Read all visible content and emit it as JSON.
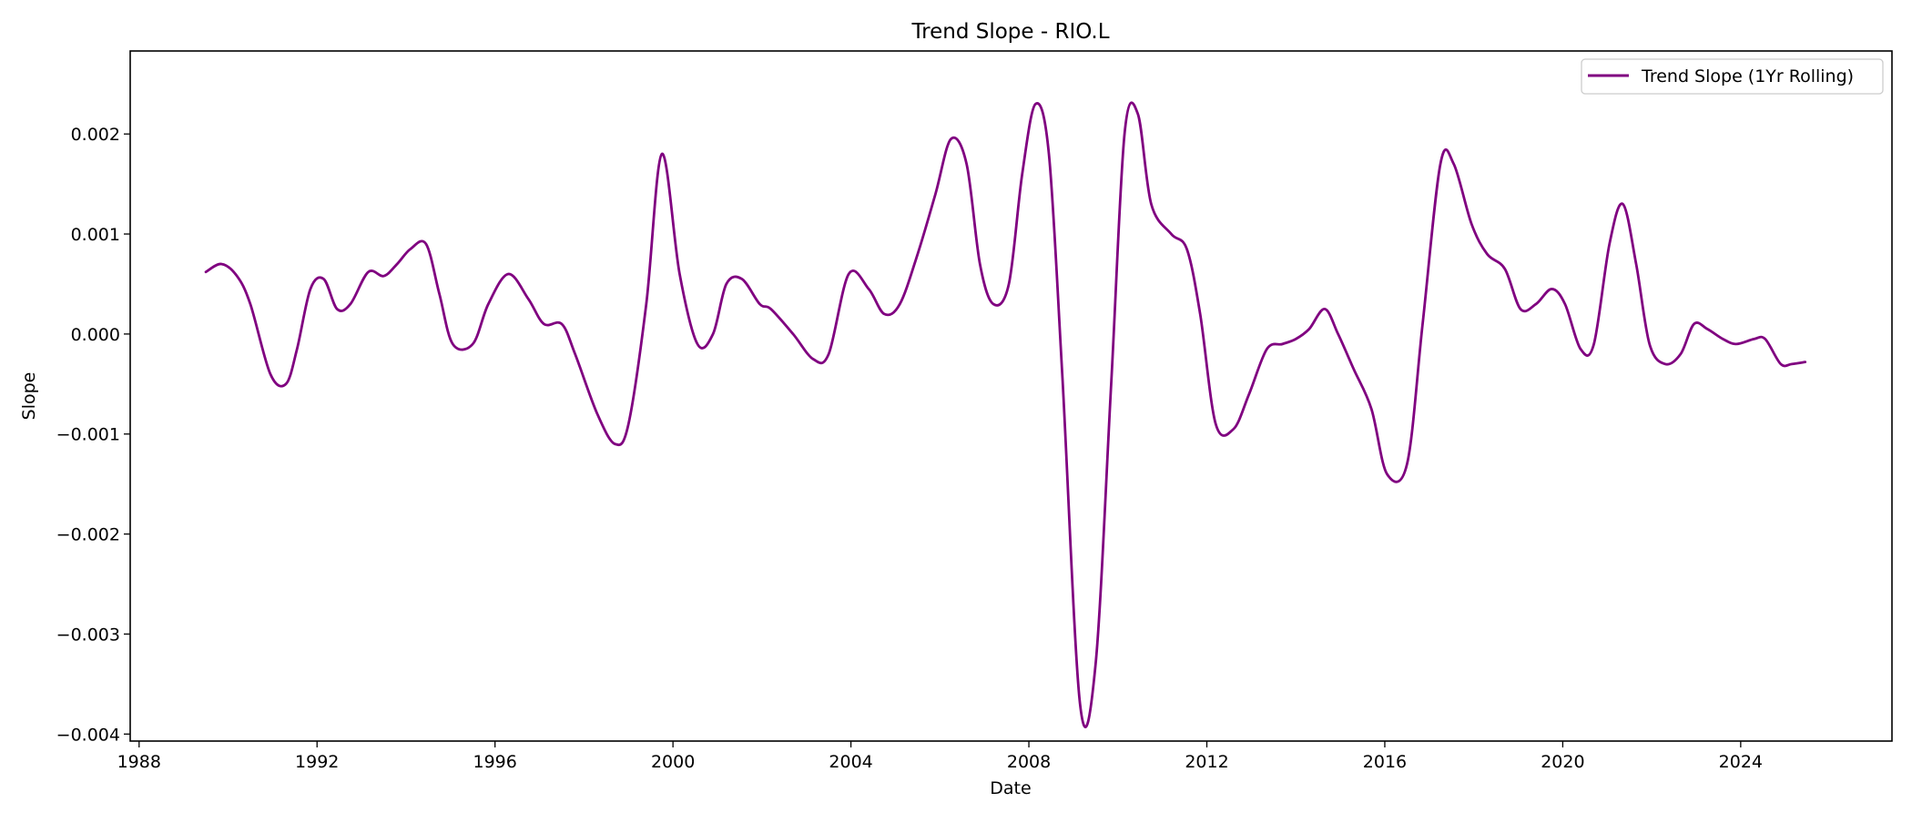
{
  "chart_data": {
    "type": "line",
    "title": "Trend Slope - RIO.L",
    "xlabel": "Date",
    "ylabel": "Slope",
    "x_range": [
      1987.8,
      2027.4
    ],
    "ylim": [
      -0.00407,
      0.00283
    ],
    "x_ticks": [
      1988,
      1992,
      1996,
      2000,
      2004,
      2008,
      2012,
      2016,
      2020,
      2024
    ],
    "x_tick_labels": [
      "1988",
      "1992",
      "1996",
      "2000",
      "2004",
      "2008",
      "2012",
      "2016",
      "2020",
      "2024"
    ],
    "y_ticks": [
      -0.004,
      -0.003,
      -0.002,
      -0.001,
      0.0,
      0.001,
      0.002
    ],
    "y_tick_labels": [
      "−0.004",
      "−0.003",
      "−0.002",
      "−0.001",
      "0.000",
      "0.001",
      "0.002"
    ],
    "grid": false,
    "legend_position": "top-right",
    "series": [
      {
        "name": "Trend Slope (1Yr Rolling)",
        "color": "#800080",
        "x": [
          1989.5,
          1989.85,
          1990.2,
          1990.5,
          1990.95,
          1991.3,
          1991.55,
          1991.85,
          1992.15,
          1992.45,
          1992.75,
          1993.15,
          1993.5,
          1993.8,
          1994.1,
          1994.45,
          1994.75,
          1995.05,
          1995.5,
          1995.85,
          1996.3,
          1996.75,
          1997.1,
          1997.5,
          1997.8,
          1998.3,
          1998.7,
          1999.0,
          1999.4,
          1999.75,
          2000.15,
          2000.55,
          2000.9,
          2001.2,
          2001.55,
          2001.95,
          2002.2,
          2002.7,
          2003.15,
          2003.5,
          2003.95,
          2004.4,
          2004.75,
          2005.1,
          2005.5,
          2005.9,
          2006.25,
          2006.6,
          2006.9,
          2007.2,
          2007.55,
          2007.85,
          2008.15,
          2008.45,
          2008.75,
          2009.15,
          2009.5,
          2009.85,
          2010.15,
          2010.45,
          2010.75,
          2011.2,
          2011.55,
          2011.85,
          2012.2,
          2012.6,
          2012.95,
          2013.35,
          2013.7,
          2014.0,
          2014.3,
          2014.65,
          2014.95,
          2015.3,
          2015.7,
          2016.05,
          2016.5,
          2016.85,
          2017.25,
          2017.55,
          2017.95,
          2018.3,
          2018.7,
          2019.05,
          2019.4,
          2019.75,
          2020.05,
          2020.4,
          2020.7,
          2021.05,
          2021.35,
          2021.65,
          2021.95,
          2022.3,
          2022.65,
          2022.95,
          2023.25,
          2023.6,
          2023.9,
          2024.3,
          2024.55,
          2024.9,
          2025.15,
          2025.45
        ],
        "y": [
          0.00062,
          0.0007,
          0.00058,
          0.0003,
          -0.0004,
          -0.0005,
          -0.00015,
          0.00045,
          0.00055,
          0.00025,
          0.0003,
          0.00062,
          0.00058,
          0.0007,
          0.00085,
          0.0009,
          0.0004,
          -0.0001,
          -0.0001,
          0.0003,
          0.0006,
          0.00035,
          0.0001,
          0.0001,
          -0.0002,
          -0.0008,
          -0.0011,
          -0.0009,
          0.0003,
          0.0018,
          0.0006,
          -0.0001,
          0.0,
          0.0005,
          0.00055,
          0.0003,
          0.00025,
          0.0,
          -0.00025,
          -0.0002,
          0.0006,
          0.00045,
          0.0002,
          0.0003,
          0.0008,
          0.0014,
          0.00195,
          0.0017,
          0.0007,
          0.0003,
          0.0005,
          0.0016,
          0.0023,
          0.0018,
          -0.0004,
          -0.0037,
          -0.0033,
          -0.0005,
          0.002,
          0.0022,
          0.0013,
          0.001,
          0.00085,
          0.0002,
          -0.0009,
          -0.00095,
          -0.0006,
          -0.00015,
          -0.0001,
          -5e-05,
          5e-05,
          0.00025,
          0.0,
          -0.00035,
          -0.00075,
          -0.0014,
          -0.0013,
          0.0001,
          0.0017,
          0.0017,
          0.0011,
          0.0008,
          0.00065,
          0.00025,
          0.0003,
          0.00045,
          0.0003,
          -0.00015,
          -0.0001,
          0.0009,
          0.0013,
          0.0007,
          -0.0001,
          -0.0003,
          -0.0002,
          0.0001,
          5e-05,
          -5e-05,
          -0.0001,
          -5e-05,
          -5e-05,
          -0.0003,
          -0.0003,
          -0.00028
        ]
      }
    ]
  }
}
